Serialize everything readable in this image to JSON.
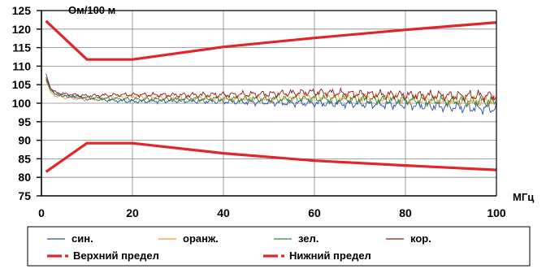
{
  "chart_data": {
    "type": "line",
    "ylabel": "Ом/100 м",
    "xlabel": "МГц",
    "xlim": [
      0,
      100
    ],
    "ylim": [
      75,
      125
    ],
    "x_ticks": [
      0,
      20,
      40,
      60,
      80,
      100
    ],
    "y_ticks": [
      75,
      80,
      85,
      90,
      95,
      100,
      105,
      110,
      115,
      120,
      125
    ],
    "grid": true,
    "legend_position": "bottom",
    "series": [
      {
        "name": "син.",
        "color": "#2b4fa8",
        "style": "thin",
        "points": [
          [
            1,
            108
          ],
          [
            2,
            104
          ],
          [
            3,
            102.5
          ],
          [
            5,
            102
          ],
          [
            10,
            101.2
          ],
          [
            15,
            100.8
          ],
          [
            20,
            100.5
          ],
          [
            30,
            100.7
          ],
          [
            40,
            100.5
          ],
          [
            50,
            100.2
          ],
          [
            60,
            100
          ],
          [
            70,
            99.8
          ],
          [
            80,
            99.6
          ],
          [
            90,
            99
          ],
          [
            100,
            98.5
          ]
        ]
      },
      {
        "name": "оранж.",
        "color": "#f29a30",
        "style": "thin",
        "points": [
          [
            1,
            106
          ],
          [
            2,
            103
          ],
          [
            3,
            102
          ],
          [
            5,
            101.5
          ],
          [
            10,
            101
          ],
          [
            15,
            101.5
          ],
          [
            20,
            101.8
          ],
          [
            30,
            101.5
          ],
          [
            40,
            101.2
          ],
          [
            50,
            101.4
          ],
          [
            60,
            101.8
          ],
          [
            70,
            101.6
          ],
          [
            80,
            101.2
          ],
          [
            90,
            100.8
          ],
          [
            100,
            100.5
          ]
        ]
      },
      {
        "name": "зел.",
        "color": "#2e8b3a",
        "style": "thin",
        "points": [
          [
            1,
            106.5
          ],
          [
            2,
            103.5
          ],
          [
            3,
            102.5
          ],
          [
            5,
            102
          ],
          [
            10,
            101.5
          ],
          [
            15,
            101.2
          ],
          [
            20,
            101
          ],
          [
            30,
            101
          ],
          [
            40,
            101.2
          ],
          [
            50,
            101
          ],
          [
            60,
            101.2
          ],
          [
            70,
            101
          ],
          [
            80,
            100.8
          ],
          [
            90,
            100.6
          ],
          [
            100,
            100.5
          ]
        ]
      },
      {
        "name": "кор.",
        "color": "#8b1a1a",
        "style": "thin",
        "points": [
          [
            1,
            107
          ],
          [
            2,
            104
          ],
          [
            3,
            103
          ],
          [
            5,
            102.5
          ],
          [
            10,
            102
          ],
          [
            15,
            102.2
          ],
          [
            20,
            102.3
          ],
          [
            30,
            102.2
          ],
          [
            40,
            102.3
          ],
          [
            50,
            102.5
          ],
          [
            60,
            103
          ],
          [
            70,
            102.5
          ],
          [
            80,
            102.2
          ],
          [
            90,
            102
          ],
          [
            100,
            102
          ]
        ]
      },
      {
        "name": "Верхний предел",
        "color": "#e0262b",
        "style": "thick",
        "points": [
          [
            1,
            122.2
          ],
          [
            10,
            111.8
          ],
          [
            20,
            111.8
          ],
          [
            40,
            115.2
          ],
          [
            60,
            117.6
          ],
          [
            80,
            119.8
          ],
          [
            100,
            121.8
          ]
        ]
      },
      {
        "name": "Нижний предел",
        "color": "#e0262b",
        "style": "thick",
        "points": [
          [
            1,
            81.5
          ],
          [
            10,
            89.2
          ],
          [
            20,
            89.2
          ],
          [
            40,
            86.5
          ],
          [
            60,
            84.5
          ],
          [
            80,
            83.2
          ],
          [
            100,
            82
          ]
        ]
      }
    ],
    "legend": [
      {
        "label": "син.",
        "color": "#2b4fa8"
      },
      {
        "label": "оранж.",
        "color": "#f29a30"
      },
      {
        "label": "зел.",
        "color": "#2e8b3a"
      },
      {
        "label": "кор.",
        "color": "#8b1a1a"
      },
      {
        "label": "Верхний предел",
        "color": "#e0262b"
      },
      {
        "label": "Нижний предел",
        "color": "#e0262b"
      }
    ]
  }
}
